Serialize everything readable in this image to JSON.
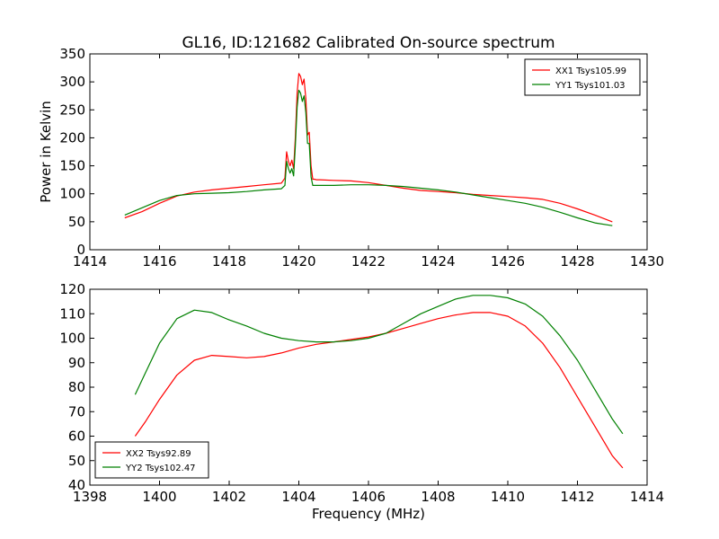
{
  "figure": {
    "title": "GL16, ID:121682 Calibrated On-source spectrum"
  },
  "chart_data": [
    {
      "type": "line",
      "title": "GL16, ID:121682 Calibrated On-source spectrum",
      "xlabel": "",
      "ylabel": "Power in Kelvin",
      "xlim": [
        1414,
        1430
      ],
      "ylim": [
        0,
        350
      ],
      "xticks": [
        1414,
        1416,
        1418,
        1420,
        1422,
        1424,
        1426,
        1428,
        1430
      ],
      "yticks": [
        0,
        50,
        100,
        150,
        200,
        250,
        300,
        350
      ],
      "grid": false,
      "legend_position": "top-right",
      "series": [
        {
          "name": "XX1 Tsys105.99",
          "color": "#ff0000",
          "x": [
            1415.0,
            1415.5,
            1416.0,
            1416.5,
            1417.0,
            1417.5,
            1418.0,
            1418.5,
            1419.0,
            1419.5,
            1419.6,
            1419.65,
            1419.7,
            1419.75,
            1419.8,
            1419.85,
            1419.9,
            1419.95,
            1420.0,
            1420.05,
            1420.1,
            1420.15,
            1420.2,
            1420.25,
            1420.3,
            1420.35,
            1420.4,
            1420.45,
            1420.5,
            1420.55,
            1420.6,
            1421.0,
            1421.5,
            1422.0,
            1422.5,
            1423.0,
            1423.5,
            1424.0,
            1424.5,
            1425.0,
            1425.5,
            1426.0,
            1426.5,
            1427.0,
            1427.5,
            1428.0,
            1428.5,
            1429.0
          ],
          "y": [
            57,
            68,
            83,
            96,
            103,
            107,
            110,
            113,
            116,
            119,
            128,
            175,
            158,
            150,
            160,
            145,
            200,
            280,
            315,
            310,
            295,
            305,
            270,
            205,
            210,
            150,
            126,
            126,
            125,
            125,
            125,
            124,
            123,
            120,
            115,
            110,
            106,
            104,
            102,
            99,
            97,
            95,
            93,
            90,
            83,
            73,
            62,
            50
          ]
        },
        {
          "name": "YY1 Tsys101.03",
          "color": "#008000",
          "x": [
            1415.0,
            1415.5,
            1416.0,
            1416.5,
            1417.0,
            1417.5,
            1418.0,
            1418.5,
            1419.0,
            1419.5,
            1419.6,
            1419.65,
            1419.7,
            1419.75,
            1419.8,
            1419.85,
            1419.9,
            1419.95,
            1420.0,
            1420.05,
            1420.1,
            1420.15,
            1420.2,
            1420.25,
            1420.3,
            1420.35,
            1420.4,
            1420.45,
            1420.5,
            1420.55,
            1420.6,
            1421.0,
            1421.5,
            1422.0,
            1422.5,
            1423.0,
            1423.5,
            1424.0,
            1424.5,
            1425.0,
            1425.5,
            1426.0,
            1426.5,
            1427.0,
            1427.5,
            1428.0,
            1428.5,
            1429.0
          ],
          "y": [
            62,
            75,
            88,
            97,
            100,
            101,
            102,
            104,
            107,
            109,
            115,
            158,
            145,
            137,
            145,
            132,
            185,
            255,
            285,
            280,
            265,
            275,
            245,
            190,
            190,
            130,
            115,
            115,
            115,
            115,
            115,
            115,
            116,
            116,
            115,
            113,
            110,
            107,
            103,
            98,
            93,
            88,
            83,
            76,
            67,
            57,
            48,
            43
          ]
        }
      ]
    },
    {
      "type": "line",
      "title": "",
      "xlabel": "Frequency (MHz)",
      "ylabel": "",
      "xlim": [
        1398,
        1414
      ],
      "ylim": [
        40,
        120
      ],
      "xticks": [
        1398,
        1400,
        1402,
        1404,
        1406,
        1408,
        1410,
        1412,
        1414
      ],
      "yticks": [
        40,
        50,
        60,
        70,
        80,
        90,
        100,
        110,
        120
      ],
      "grid": false,
      "legend_position": "bottom-left",
      "series": [
        {
          "name": "XX2 Tsys92.89",
          "color": "#ff0000",
          "x": [
            1399.3,
            1399.6,
            1400.0,
            1400.5,
            1401.0,
            1401.5,
            1402.0,
            1402.5,
            1403.0,
            1403.5,
            1404.0,
            1404.5,
            1405.0,
            1405.5,
            1406.0,
            1406.5,
            1407.0,
            1407.5,
            1408.0,
            1408.5,
            1409.0,
            1409.5,
            1410.0,
            1410.5,
            1411.0,
            1411.5,
            1412.0,
            1412.5,
            1413.0,
            1413.3
          ],
          "y": [
            60,
            66,
            75,
            85,
            91,
            93,
            92.5,
            92,
            92.5,
            94,
            96,
            97.5,
            98.5,
            99.5,
            100.5,
            102,
            104,
            106,
            108,
            109.5,
            110.5,
            110.5,
            109,
            105,
            98,
            88,
            76,
            64,
            52,
            47
          ]
        },
        {
          "name": "YY2 Tsys102.47",
          "color": "#008000",
          "x": [
            1399.3,
            1399.6,
            1400.0,
            1400.5,
            1401.0,
            1401.5,
            1402.0,
            1402.5,
            1403.0,
            1403.5,
            1404.0,
            1404.5,
            1405.0,
            1405.5,
            1406.0,
            1406.5,
            1407.0,
            1407.5,
            1408.0,
            1408.5,
            1409.0,
            1409.5,
            1410.0,
            1410.5,
            1411.0,
            1411.5,
            1412.0,
            1412.5,
            1413.0,
            1413.3
          ],
          "y": [
            77,
            86,
            98,
            108,
            111.5,
            110.5,
            107.5,
            105,
            102,
            100,
            99,
            98.5,
            98.5,
            99,
            100,
            102,
            106,
            110,
            113,
            116,
            117.5,
            117.5,
            116.5,
            114,
            109,
            101,
            91,
            79,
            67,
            61
          ]
        }
      ]
    }
  ]
}
